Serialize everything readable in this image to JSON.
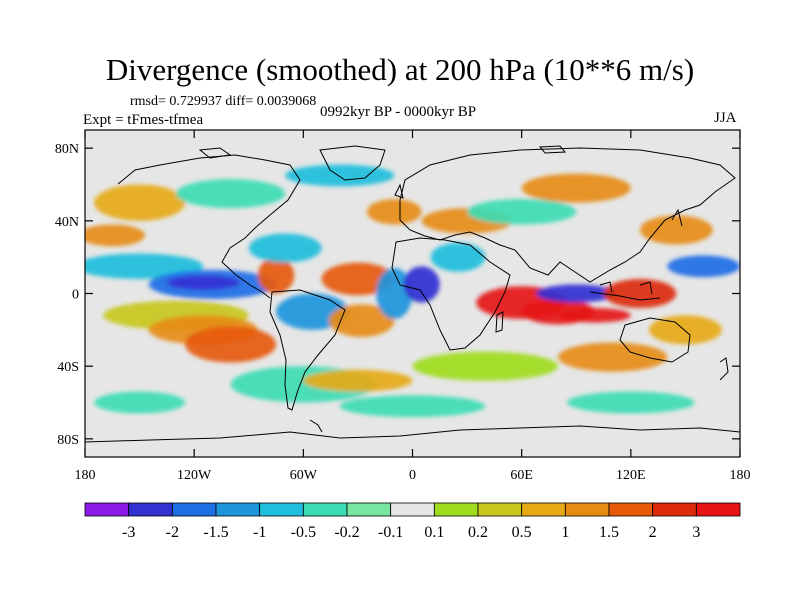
{
  "title": "Divergence (smoothed) at 200 hPa (10**6 m/s)",
  "stats": "rmsd= 0.729937  diff= 0.0039068",
  "experiment": "Expt = tFmes-tfmea",
  "period": "0992kyr BP - 0000kyr BP",
  "season": "JJA",
  "y_axis": {
    "labels": [
      "80N",
      "40N",
      "0",
      "40S",
      "80S"
    ],
    "lats": [
      80,
      40,
      0,
      -40,
      -80
    ]
  },
  "x_axis": {
    "labels": [
      "180",
      "120W",
      "60W",
      "0",
      "60E",
      "120E",
      "180"
    ],
    "lons": [
      -180,
      -120,
      -60,
      0,
      60,
      120,
      180
    ]
  },
  "colorbar": {
    "labels": [
      "-3",
      "-2",
      "-1.5",
      "-1",
      "-0.5",
      "-0.2",
      "-0.1",
      "0.1",
      "0.2",
      "0.5",
      "1",
      "1.5",
      "2",
      "3"
    ],
    "colors": [
      "#8c1ae6",
      "#3232d2",
      "#1e6ee6",
      "#1e96dc",
      "#1ebedc",
      "#3cdcb4",
      "#78e6a0",
      "#e6e6e6",
      "#a0dc1e",
      "#c8c81e",
      "#e6aa14",
      "#e68c14",
      "#e65a0a",
      "#dc2a0a",
      "#e61414"
    ]
  },
  "colors": {
    "ocean_background": "#e6e6e6",
    "coastline": "#000000"
  },
  "field_blobs": [
    {
      "lon": -150,
      "lat": 50,
      "rlon": 25,
      "rlat": 10,
      "ci": 10
    },
    {
      "lon": -165,
      "lat": 32,
      "rlon": 18,
      "rlat": 6,
      "ci": 11
    },
    {
      "lon": -150,
      "lat": 15,
      "rlon": 35,
      "rlat": 7,
      "ci": 4
    },
    {
      "lon": -110,
      "lat": 5,
      "rlon": 35,
      "rlat": 8,
      "ci": 2
    },
    {
      "lon": -115,
      "lat": 6,
      "rlon": 20,
      "rlat": 4,
      "ci": 1
    },
    {
      "lon": -130,
      "lat": -12,
      "rlon": 40,
      "rlat": 8,
      "ci": 9
    },
    {
      "lon": -115,
      "lat": -20,
      "rlon": 30,
      "rlat": 8,
      "ci": 11
    },
    {
      "lon": -100,
      "lat": -28,
      "rlon": 25,
      "rlat": 10,
      "ci": 12
    },
    {
      "lon": -75,
      "lat": 10,
      "rlon": 10,
      "rlat": 10,
      "ci": 12
    },
    {
      "lon": -70,
      "lat": 25,
      "rlon": 20,
      "rlat": 8,
      "ci": 4
    },
    {
      "lon": -55,
      "lat": -10,
      "rlon": 20,
      "rlat": 10,
      "ci": 3
    },
    {
      "lon": -30,
      "lat": 8,
      "rlon": 20,
      "rlat": 9,
      "ci": 12
    },
    {
      "lon": -28,
      "lat": -15,
      "rlon": 18,
      "rlat": 9,
      "ci": 11
    },
    {
      "lon": -10,
      "lat": 0,
      "rlon": 10,
      "rlat": 14,
      "ci": 3
    },
    {
      "lon": 5,
      "lat": 5,
      "rlon": 10,
      "rlat": 10,
      "ci": 1
    },
    {
      "lon": 25,
      "lat": 20,
      "rlon": 15,
      "rlat": 8,
      "ci": 4
    },
    {
      "lon": 30,
      "lat": 40,
      "rlon": 25,
      "rlat": 7,
      "ci": 11
    },
    {
      "lon": -10,
      "lat": 45,
      "rlon": 15,
      "rlat": 7,
      "ci": 11
    },
    {
      "lon": 60,
      "lat": 45,
      "rlon": 30,
      "rlat": 7,
      "ci": 5
    },
    {
      "lon": 60,
      "lat": -5,
      "rlon": 25,
      "rlat": 9,
      "ci": 14
    },
    {
      "lon": 80,
      "lat": -10,
      "rlon": 20,
      "rlat": 7,
      "ci": 14
    },
    {
      "lon": 90,
      "lat": 0,
      "rlon": 22,
      "rlat": 5,
      "ci": 1
    },
    {
      "lon": 100,
      "lat": -12,
      "rlon": 20,
      "rlat": 4,
      "ci": 14
    },
    {
      "lon": 125,
      "lat": 0,
      "rlon": 20,
      "rlat": 8,
      "ci": 13
    },
    {
      "lon": 160,
      "lat": 15,
      "rlon": 20,
      "rlat": 6,
      "ci": 2
    },
    {
      "lon": 145,
      "lat": 35,
      "rlon": 20,
      "rlat": 8,
      "ci": 11
    },
    {
      "lon": 150,
      "lat": -20,
      "rlon": 20,
      "rlat": 8,
      "ci": 10
    },
    {
      "lon": 110,
      "lat": -35,
      "rlon": 30,
      "rlat": 8,
      "ci": 11
    },
    {
      "lon": 40,
      "lat": -40,
      "rlon": 40,
      "rlat": 8,
      "ci": 8
    },
    {
      "lon": -60,
      "lat": -50,
      "rlon": 40,
      "rlat": 10,
      "ci": 5
    },
    {
      "lon": 0,
      "lat": -62,
      "rlon": 40,
      "rlat": 6,
      "ci": 5
    },
    {
      "lon": 120,
      "lat": -60,
      "rlon": 35,
      "rlat": 6,
      "ci": 5
    },
    {
      "lon": -150,
      "lat": -60,
      "rlon": 25,
      "rlat": 6,
      "ci": 5
    },
    {
      "lon": -30,
      "lat": -48,
      "rlon": 30,
      "rlat": 6,
      "ci": 10
    },
    {
      "lon": -100,
      "lat": 55,
      "rlon": 30,
      "rlat": 8,
      "ci": 5
    },
    {
      "lon": 90,
      "lat": 58,
      "rlon": 30,
      "rlat": 8,
      "ci": 11
    },
    {
      "lon": -40,
      "lat": 65,
      "rlon": 30,
      "rlat": 6,
      "ci": 4
    }
  ]
}
